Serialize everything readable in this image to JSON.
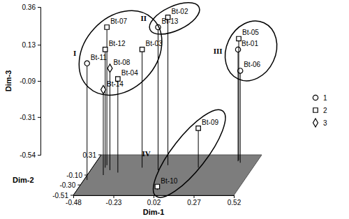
{
  "chart_data": {
    "type": "scatter3d",
    "xlabel": "Dim-1",
    "ylabel": "Dim-2",
    "zlabel": "Dim-3",
    "xlim": [
      -0.48,
      0.52
    ],
    "xticks": [
      -0.48,
      -0.23,
      0.02,
      0.27,
      0.52
    ],
    "ylim": [
      -0.51,
      0.31
    ],
    "yticks": [
      -0.51,
      {
        "value": -0.3,
        "label": "-0.30"
      },
      {
        "value": -0.1,
        "label": "-0.10"
      },
      0.31
    ],
    "zlim": [
      -0.54,
      0.36
    ],
    "zticks": [
      -0.54,
      -0.31,
      -0.09,
      0.13,
      0.36
    ],
    "legend": "right",
    "series": [
      {
        "name": "1",
        "marker": "circle",
        "labels": [
          "Bt-11",
          "Bt-13",
          "Bt-01",
          "Bt-06"
        ],
        "x": [
          -0.46,
          -0.06,
          0.4,
          0.42
        ],
        "y": [
          -0.2,
          0.0,
          0.18,
          0.15
        ],
        "z": [
          0.17,
          0.33,
          0.14,
          0.02
        ]
      },
      {
        "name": "2",
        "marker": "square",
        "labels": [
          "Bt-07",
          "Bt-12",
          "Bt-04",
          "Bt-03",
          "Bt-02",
          "Bt-09",
          "Bt-10",
          "Bt-05"
        ],
        "x": [
          -0.4,
          -0.4,
          -0.3,
          -0.17,
          -0.02,
          0.18,
          0.02,
          0.4
        ],
        "y": [
          0.1,
          0.05,
          -0.05,
          0.05,
          0.1,
          0.05,
          -0.4,
          0.2
        ],
        "z": [
          0.3,
          0.18,
          0.03,
          0.18,
          0.36,
          -0.3,
          -0.52,
          0.2
        ]
      },
      {
        "name": "3",
        "marker": "diamond",
        "labels": [
          "Bt-08",
          "Bt-14"
        ],
        "x": [
          -0.36,
          -0.38
        ],
        "y": [
          0.0,
          -0.1
        ],
        "z": [
          0.08,
          -0.02
        ]
      }
    ],
    "clusters": [
      {
        "label": "I",
        "members": [
          "Bt-07",
          "Bt-12",
          "Bt-08",
          "Bt-11",
          "Bt-14",
          "Bt-04",
          "Bt-03"
        ]
      },
      {
        "label": "II",
        "members": [
          "Bt-02",
          "Bt-13"
        ]
      },
      {
        "label": "III",
        "members": [
          "Bt-05",
          "Bt-01",
          "Bt-06"
        ]
      },
      {
        "label": "IV",
        "members": [
          "Bt-09",
          "Bt-10"
        ]
      }
    ]
  }
}
